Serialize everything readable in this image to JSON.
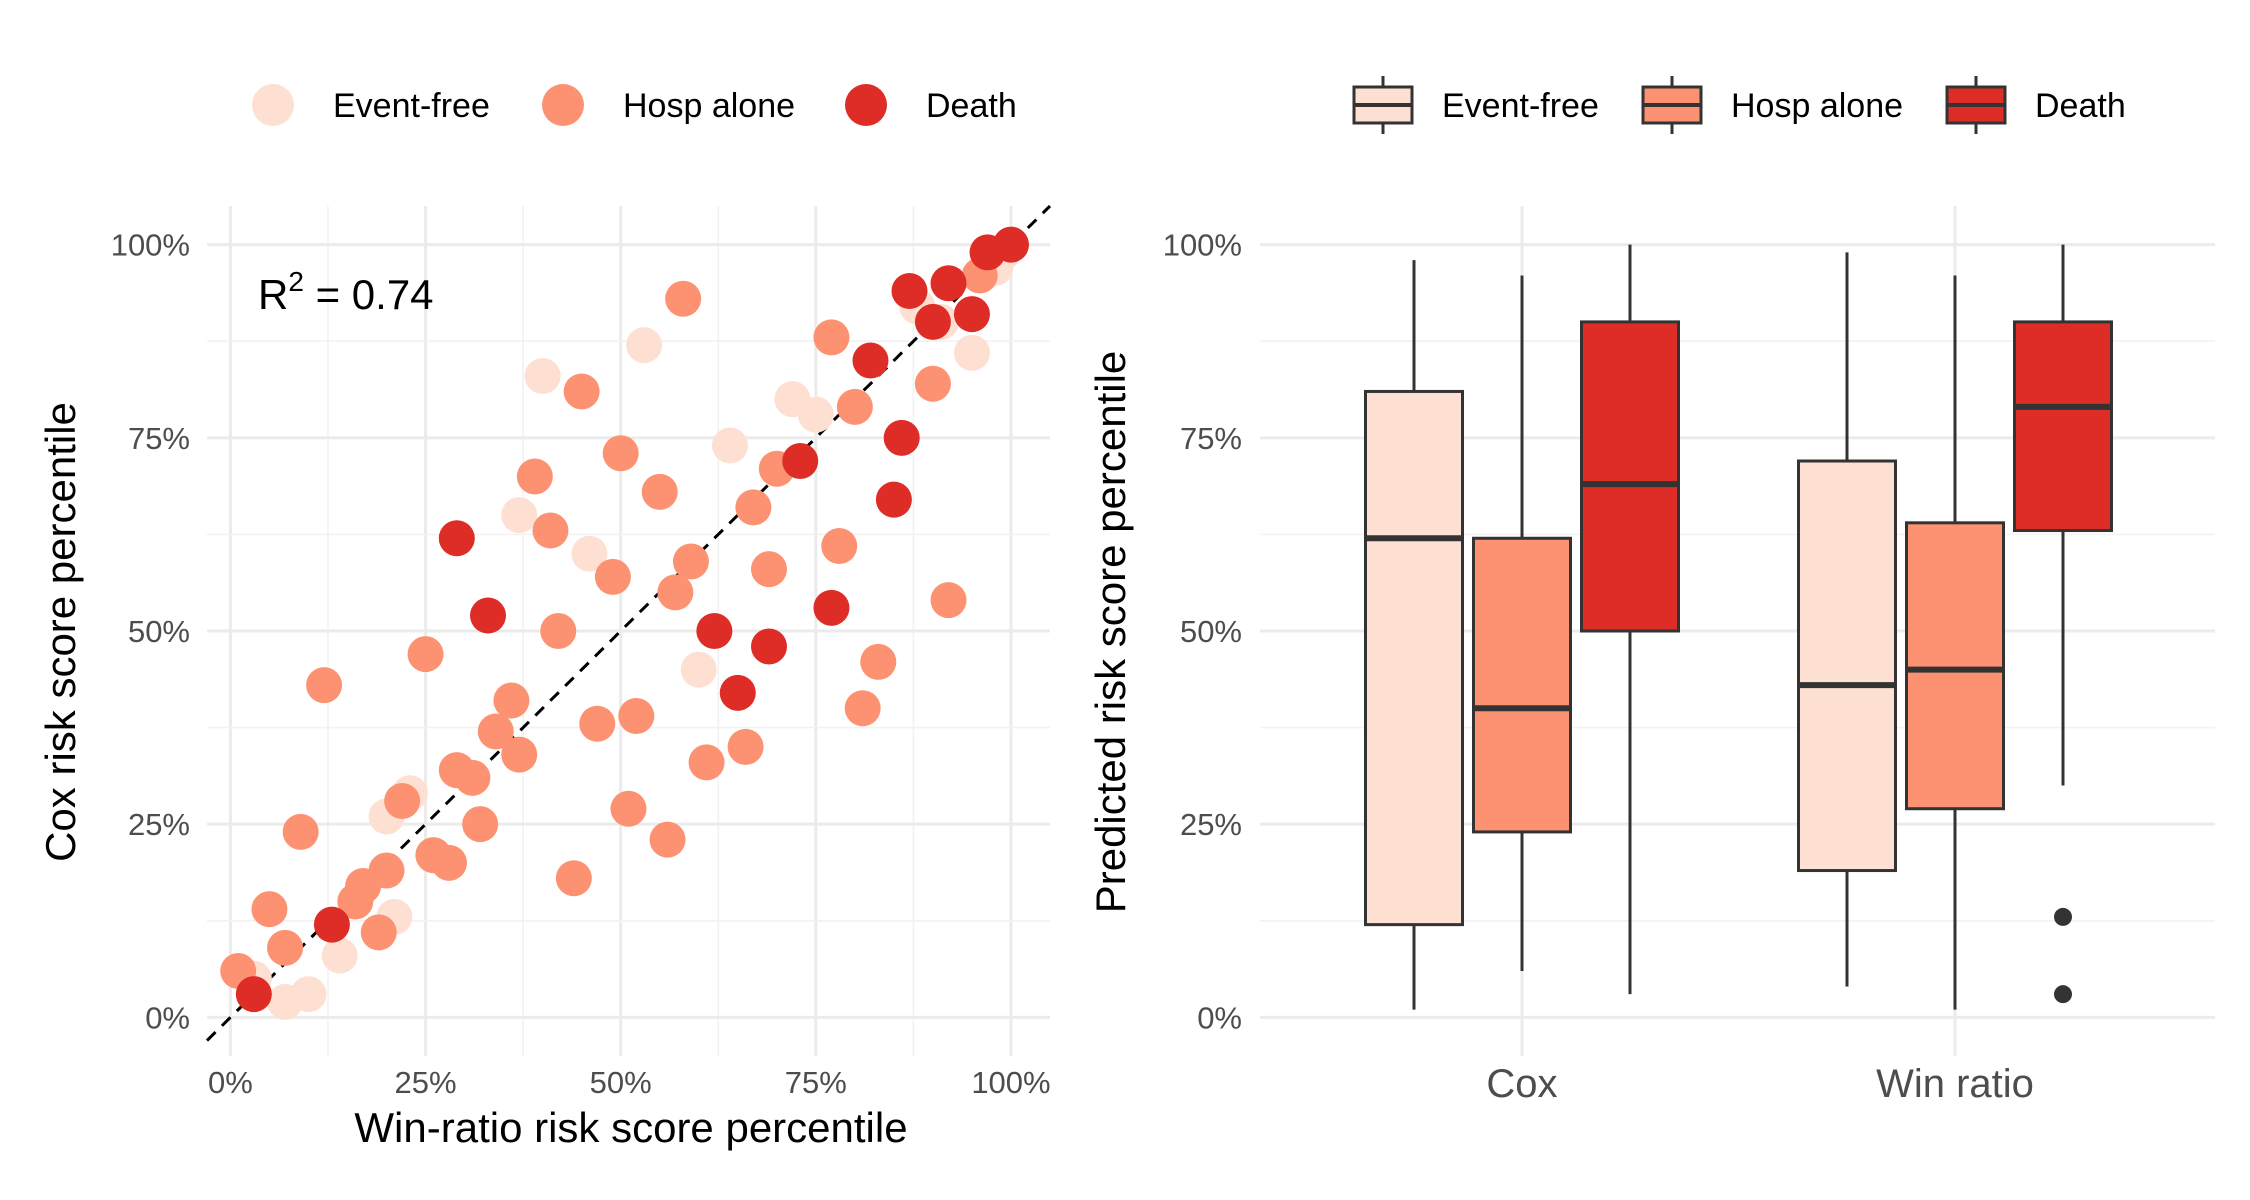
{
  "colors": {
    "Event-free": "#fee0d2",
    "Hosp alone": "#fc9272",
    "Death": "#de2d26",
    "outline": "#333333"
  },
  "chart_data": [
    {
      "type": "scatter",
      "title": "",
      "xlabel": "Win-ratio risk score percentile",
      "ylabel": "Cox risk score percentile",
      "xlim": [
        -0.03,
        1.05
      ],
      "ylim": [
        -0.05,
        1.05
      ],
      "x_ticks": [
        0,
        0.25,
        0.5,
        0.75,
        1.0
      ],
      "y_ticks": [
        0,
        0.25,
        0.5,
        0.75,
        1.0
      ],
      "tick_labels": [
        "0%",
        "25%",
        "50%",
        "75%",
        "100%"
      ],
      "grid": true,
      "legend_position": "top",
      "reference_line": "y = x (dashed)",
      "annotation": {
        "text": "R",
        "superscript": "2",
        "value": " = 0.74"
      },
      "series": [
        {
          "name": "Event-free",
          "points": [
            [
              0.03,
              0.05
            ],
            [
              0.07,
              0.02
            ],
            [
              0.1,
              0.03
            ],
            [
              0.14,
              0.08
            ],
            [
              0.21,
              0.13
            ],
            [
              0.2,
              0.26
            ],
            [
              0.23,
              0.29
            ],
            [
              0.37,
              0.65
            ],
            [
              0.4,
              0.83
            ],
            [
              0.46,
              0.6
            ],
            [
              0.53,
              0.87
            ],
            [
              0.6,
              0.45
            ],
            [
              0.64,
              0.74
            ],
            [
              0.72,
              0.8
            ],
            [
              0.75,
              0.78
            ],
            [
              0.82,
              0.85
            ],
            [
              0.88,
              0.92
            ],
            [
              0.91,
              0.9
            ],
            [
              0.95,
              0.86
            ],
            [
              0.98,
              0.97
            ],
            [
              0.99,
              0.99
            ]
          ]
        },
        {
          "name": "Hosp alone",
          "points": [
            [
              0.01,
              0.06
            ],
            [
              0.05,
              0.14
            ],
            [
              0.07,
              0.09
            ],
            [
              0.09,
              0.24
            ],
            [
              0.12,
              0.43
            ],
            [
              0.16,
              0.15
            ],
            [
              0.17,
              0.17
            ],
            [
              0.19,
              0.11
            ],
            [
              0.2,
              0.19
            ],
            [
              0.22,
              0.28
            ],
            [
              0.25,
              0.47
            ],
            [
              0.26,
              0.21
            ],
            [
              0.28,
              0.2
            ],
            [
              0.29,
              0.32
            ],
            [
              0.31,
              0.31
            ],
            [
              0.32,
              0.25
            ],
            [
              0.34,
              0.37
            ],
            [
              0.36,
              0.41
            ],
            [
              0.37,
              0.34
            ],
            [
              0.39,
              0.7
            ],
            [
              0.41,
              0.63
            ],
            [
              0.42,
              0.5
            ],
            [
              0.44,
              0.18
            ],
            [
              0.45,
              0.81
            ],
            [
              0.47,
              0.38
            ],
            [
              0.49,
              0.57
            ],
            [
              0.5,
              0.73
            ],
            [
              0.51,
              0.27
            ],
            [
              0.52,
              0.39
            ],
            [
              0.55,
              0.68
            ],
            [
              0.56,
              0.23
            ],
            [
              0.57,
              0.55
            ],
            [
              0.58,
              0.93
            ],
            [
              0.59,
              0.59
            ],
            [
              0.61,
              0.33
            ],
            [
              0.66,
              0.35
            ],
            [
              0.67,
              0.66
            ],
            [
              0.69,
              0.58
            ],
            [
              0.7,
              0.71
            ],
            [
              0.77,
              0.88
            ],
            [
              0.78,
              0.61
            ],
            [
              0.8,
              0.79
            ],
            [
              0.81,
              0.4
            ],
            [
              0.83,
              0.46
            ],
            [
              0.9,
              0.82
            ],
            [
              0.92,
              0.54
            ],
            [
              0.96,
              0.96
            ]
          ]
        },
        {
          "name": "Death",
          "points": [
            [
              0.03,
              0.03
            ],
            [
              0.13,
              0.12
            ],
            [
              0.29,
              0.62
            ],
            [
              0.33,
              0.52
            ],
            [
              0.62,
              0.5
            ],
            [
              0.65,
              0.42
            ],
            [
              0.69,
              0.48
            ],
            [
              0.73,
              0.72
            ],
            [
              0.77,
              0.53
            ],
            [
              0.82,
              0.85
            ],
            [
              0.85,
              0.67
            ],
            [
              0.86,
              0.75
            ],
            [
              0.87,
              0.94
            ],
            [
              0.9,
              0.9
            ],
            [
              0.92,
              0.95
            ],
            [
              0.95,
              0.91
            ],
            [
              0.97,
              0.99
            ],
            [
              1.0,
              1.0
            ]
          ]
        }
      ]
    },
    {
      "type": "boxplot",
      "title": "",
      "xlabel": "",
      "ylabel": "Predicted risk score percentile",
      "ylim": [
        -0.05,
        1.05
      ],
      "y_ticks": [
        0,
        0.25,
        0.5,
        0.75,
        1.0
      ],
      "tick_labels": [
        "0%",
        "25%",
        "50%",
        "75%",
        "100%"
      ],
      "grid": true,
      "legend_position": "top",
      "categories": [
        "Cox",
        "Win ratio"
      ],
      "groups": [
        "Event-free",
        "Hosp alone",
        "Death"
      ],
      "boxes": [
        {
          "category": "Cox",
          "group": "Event-free",
          "lower_whisker": 0.01,
          "q1": 0.12,
          "median": 0.62,
          "q3": 0.81,
          "upper_whisker": 0.98,
          "outliers": []
        },
        {
          "category": "Cox",
          "group": "Hosp alone",
          "lower_whisker": 0.06,
          "q1": 0.24,
          "median": 0.4,
          "q3": 0.62,
          "upper_whisker": 0.96,
          "outliers": []
        },
        {
          "category": "Cox",
          "group": "Death",
          "lower_whisker": 0.03,
          "q1": 0.5,
          "median": 0.69,
          "q3": 0.9,
          "upper_whisker": 1.0,
          "outliers": []
        },
        {
          "category": "Win ratio",
          "group": "Event-free",
          "lower_whisker": 0.04,
          "q1": 0.19,
          "median": 0.43,
          "q3": 0.72,
          "upper_whisker": 0.99,
          "outliers": []
        },
        {
          "category": "Win ratio",
          "group": "Hosp alone",
          "lower_whisker": 0.01,
          "q1": 0.27,
          "median": 0.45,
          "q3": 0.64,
          "upper_whisker": 0.96,
          "outliers": []
        },
        {
          "category": "Win ratio",
          "group": "Death",
          "lower_whisker": 0.3,
          "q1": 0.63,
          "median": 0.79,
          "q3": 0.9,
          "upper_whisker": 1.0,
          "outliers": [
            0.13,
            0.03
          ]
        }
      ]
    }
  ]
}
